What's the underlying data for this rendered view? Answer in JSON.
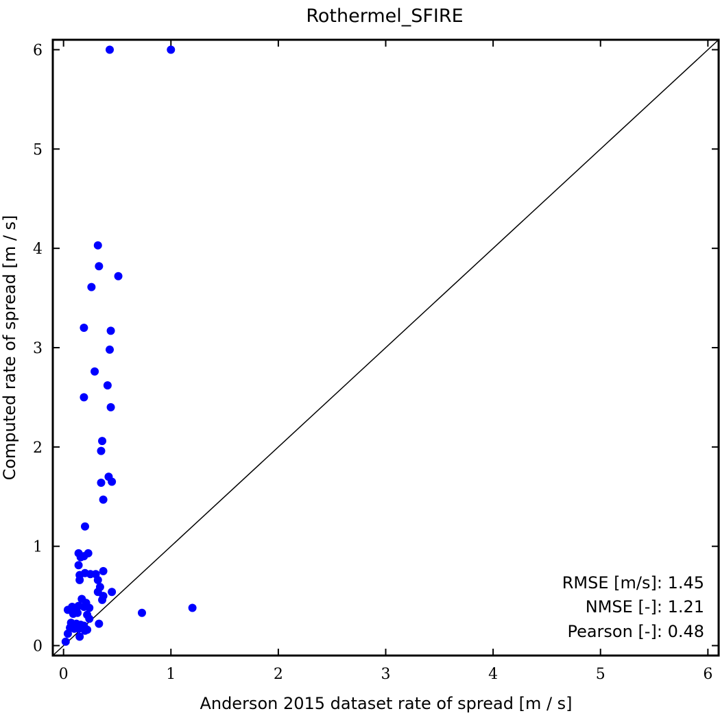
{
  "chart_data": {
    "type": "scatter",
    "title": "Rothermel_SFIRE",
    "xlabel": "Anderson 2015 dataset rate of spread [m / s]",
    "ylabel": "Computed rate of spread [m / s]",
    "xlim": [
      -0.1,
      6.1
    ],
    "ylim": [
      -0.1,
      6.1
    ],
    "xticks": [
      "0",
      "1",
      "2",
      "3",
      "4",
      "5",
      "6"
    ],
    "yticks": [
      "0",
      "1",
      "2",
      "3",
      "4",
      "5",
      "6"
    ],
    "reference_line": "y = x",
    "grid": false,
    "point_color": "#0000ff",
    "line_color": "#000000",
    "stats": [
      {
        "label": "RMSE [m/s]:",
        "value": "1.45"
      },
      {
        "label": "NMSE [-]:",
        "value": "1.21"
      },
      {
        "label": "Pearson [-]:",
        "value": "0.48"
      }
    ],
    "points": [
      [
        0.43,
        6.0
      ],
      [
        1.0,
        6.0
      ],
      [
        0.32,
        4.03
      ],
      [
        0.33,
        3.82
      ],
      [
        0.51,
        3.72
      ],
      [
        0.26,
        3.61
      ],
      [
        0.19,
        3.2
      ],
      [
        0.44,
        3.17
      ],
      [
        0.43,
        2.98
      ],
      [
        0.29,
        2.76
      ],
      [
        0.41,
        2.62
      ],
      [
        0.19,
        2.5
      ],
      [
        0.44,
        2.4
      ],
      [
        0.36,
        2.06
      ],
      [
        0.35,
        1.96
      ],
      [
        0.42,
        1.7
      ],
      [
        0.45,
        1.65
      ],
      [
        0.35,
        1.64
      ],
      [
        0.37,
        1.47
      ],
      [
        0.2,
        1.2
      ],
      [
        0.14,
        0.93
      ],
      [
        0.23,
        0.93
      ],
      [
        0.16,
        0.89
      ],
      [
        0.19,
        0.9
      ],
      [
        0.14,
        0.81
      ],
      [
        0.37,
        0.75
      ],
      [
        0.2,
        0.73
      ],
      [
        0.25,
        0.72
      ],
      [
        0.3,
        0.72
      ],
      [
        0.15,
        0.71
      ],
      [
        0.15,
        0.66
      ],
      [
        0.32,
        0.66
      ],
      [
        0.34,
        0.59
      ],
      [
        0.32,
        0.54
      ],
      [
        0.45,
        0.54
      ],
      [
        0.37,
        0.5
      ],
      [
        0.36,
        0.46
      ],
      [
        0.17,
        0.47
      ],
      [
        0.21,
        0.43
      ],
      [
        0.14,
        0.4
      ],
      [
        0.19,
        0.39
      ],
      [
        0.24,
        0.38
      ],
      [
        0.11,
        0.38
      ],
      [
        0.08,
        0.39
      ],
      [
        0.04,
        0.36
      ],
      [
        0.09,
        0.32
      ],
      [
        0.13,
        0.33
      ],
      [
        0.22,
        0.31
      ],
      [
        0.24,
        0.27
      ],
      [
        0.07,
        0.23
      ],
      [
        0.1,
        0.21
      ],
      [
        0.12,
        0.22
      ],
      [
        0.16,
        0.21
      ],
      [
        0.19,
        0.2
      ],
      [
        0.33,
        0.22
      ],
      [
        0.06,
        0.18
      ],
      [
        0.1,
        0.17
      ],
      [
        0.14,
        0.17
      ],
      [
        0.22,
        0.16
      ],
      [
        0.2,
        0.15
      ],
      [
        0.04,
        0.12
      ],
      [
        0.15,
        0.09
      ],
      [
        0.02,
        0.04
      ],
      [
        0.73,
        0.33
      ],
      [
        1.2,
        0.38
      ]
    ]
  }
}
